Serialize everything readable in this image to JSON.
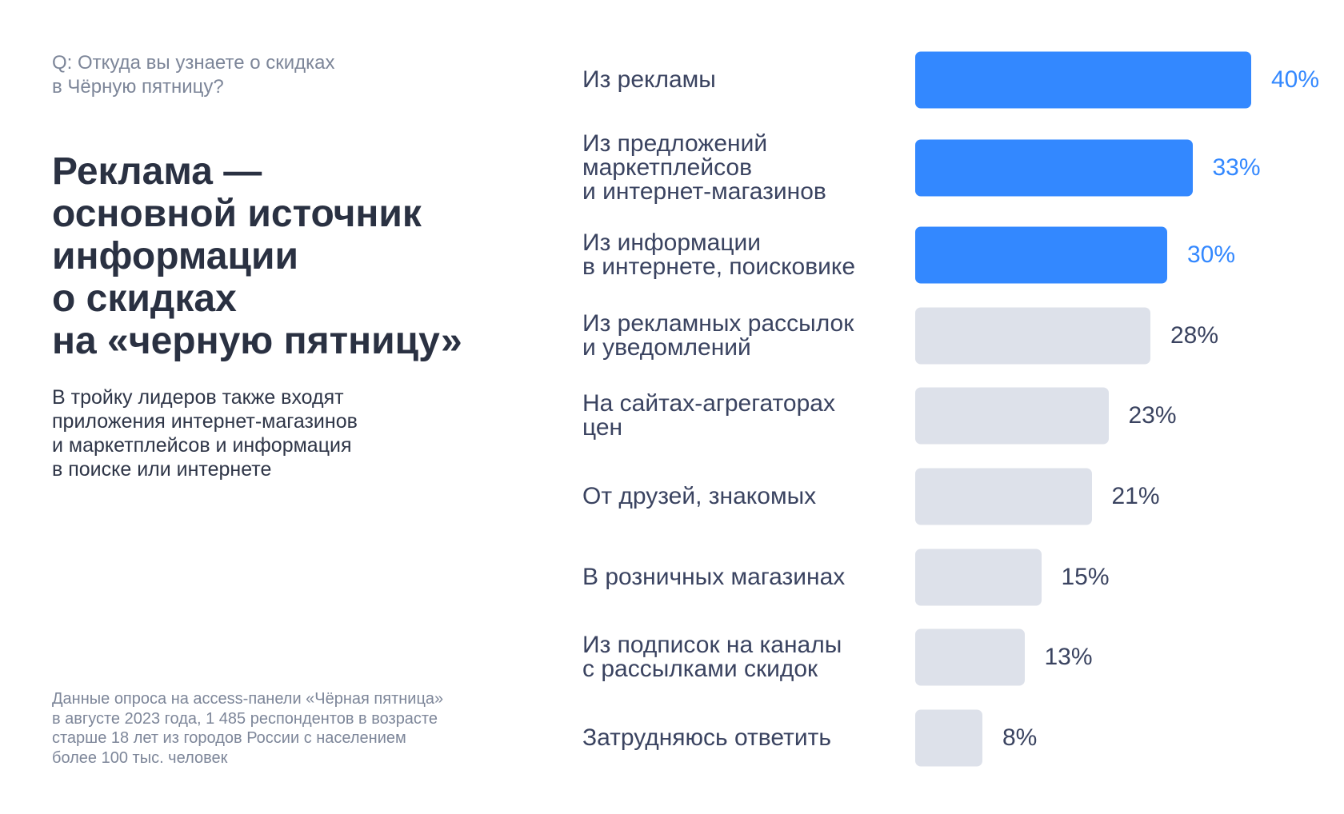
{
  "question": "Q: Откуда вы узнаете о скидках\nв Чёрную пятницу?",
  "headline": "Реклама —\nосновной источник\nинформации\nо скидках\nна «черную пятницу»",
  "subtitle": "В тройку лидеров также входят\nприложения интернет-магазинов\nи маркетплейсов и информация\nв поиске или интернете",
  "footnote": "Данные опроса на access-панели «Чёрная пятница»\nв августе 2023 года, 1 485 респондентов в возрасте\nстарше 18 лет из городов России с населением\nболее 100 тыс. человек",
  "colors": {
    "highlight": "#3388ff",
    "muted": "#dde1ea",
    "value_muted": "#3a4360"
  },
  "chart_data": {
    "type": "bar",
    "orientation": "horizontal",
    "title": "Q: Откуда вы узнаете о скидках в Чёрную пятницу?",
    "xlabel": "",
    "ylabel": "",
    "xlim": [
      0,
      40
    ],
    "grid": false,
    "categories": [
      "Из рекламы",
      "Из предложений\nмаркетплейсов\nи интернет-магазинов",
      "Из информации\nв интернете, поисковике",
      "Из рекламных рассылок\nи уведомлений",
      "На сайтах-агрегаторах\nцен",
      "От друзей, знакомых",
      "В розничных магазинах",
      "Из подписок на каналы\nс рассылками скидок",
      "Затрудняюсь ответить"
    ],
    "values": [
      40,
      33,
      30,
      28,
      23,
      21,
      15,
      13,
      8
    ],
    "value_labels": [
      "40%",
      "33%",
      "30%",
      "28%",
      "23%",
      "21%",
      "15%",
      "13%",
      "8%"
    ],
    "highlighted": [
      true,
      true,
      true,
      false,
      false,
      false,
      false,
      false,
      false
    ]
  }
}
